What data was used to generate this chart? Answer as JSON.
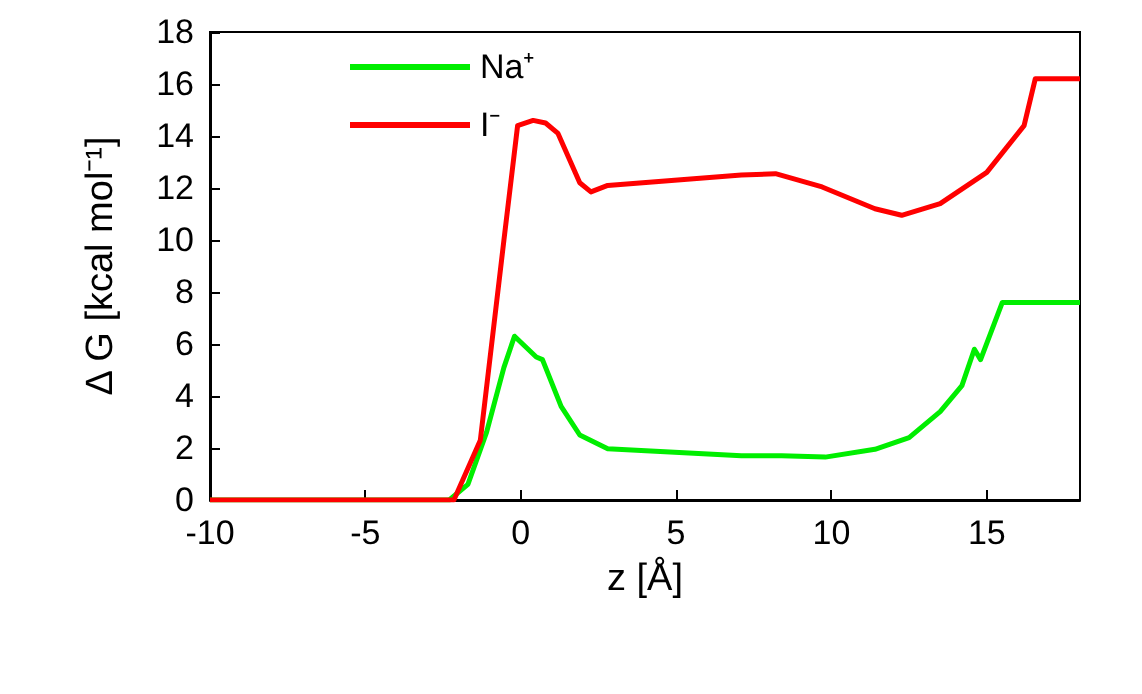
{
  "chart_data": {
    "type": "line",
    "xlabel": "z [Å]",
    "ylabel": "Δ G [kcal mol⁻¹]",
    "xlim": [
      -10,
      18
    ],
    "xticks": [
      -10,
      -5,
      0,
      5,
      10,
      15
    ],
    "ylim": [
      0,
      18
    ],
    "yticks": [
      0,
      2,
      4,
      6,
      8,
      10,
      12,
      14,
      16,
      18
    ],
    "grid": false,
    "legend": "top left",
    "marker": "none",
    "line_style": "solid",
    "series": [
      {
        "name": "Na⁺",
        "color": "#00ee00",
        "x": [
          -10,
          -2.3,
          -1.7,
          -1.1,
          -0.54,
          -0.2,
          0.5,
          0.7,
          1.3,
          1.9,
          2.8,
          7.1,
          8.4,
          9.8,
          11.4,
          12.5,
          13.5,
          14.2,
          14.6,
          14.8,
          15.5,
          18
        ],
        "values": [
          0,
          0,
          0.6,
          2.6,
          5.1,
          6.3,
          5.5,
          5.4,
          3.6,
          2.5,
          1.97,
          1.7,
          1.7,
          1.65,
          1.95,
          2.4,
          3.4,
          4.4,
          5.8,
          5.4,
          7.6,
          7.6
        ]
      },
      {
        "name": "I⁻",
        "color": "#ff0000",
        "x": [
          -10,
          -2.15,
          -1.3,
          -0.54,
          -0.1,
          0.4,
          0.8,
          1.2,
          1.9,
          2.26,
          2.8,
          7.1,
          8.2,
          9.7,
          11.4,
          12.26,
          13.5,
          15,
          16.2,
          16.56,
          18
        ],
        "values": [
          0,
          0,
          2.3,
          10,
          14.4,
          14.6,
          14.5,
          14.1,
          12.2,
          11.85,
          12.1,
          12.5,
          12.55,
          12.04,
          11.2,
          10.95,
          11.4,
          12.6,
          14.4,
          16.2,
          16.2
        ]
      }
    ]
  }
}
